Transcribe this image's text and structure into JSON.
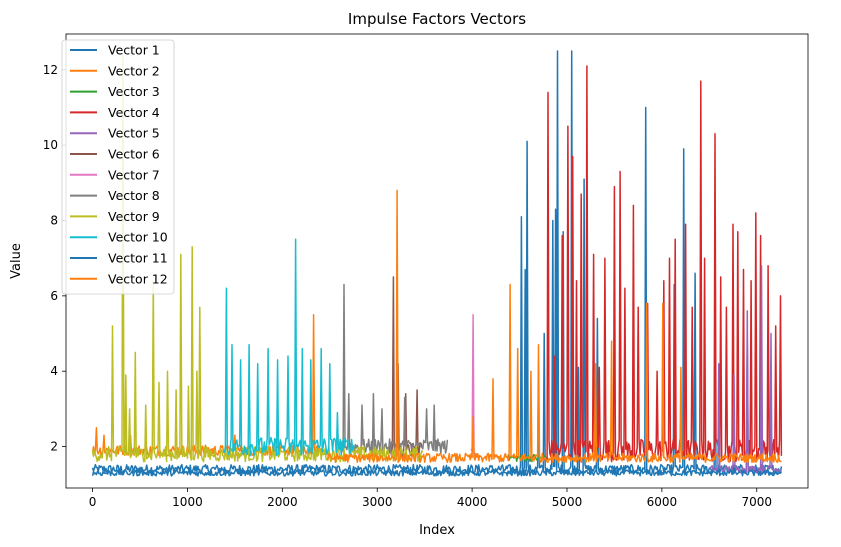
{
  "chart_data": {
    "type": "line",
    "title": "Impulse Factors Vectors",
    "xlabel": "Index",
    "ylabel": "Value",
    "xlim": [
      -280,
      7540
    ],
    "ylim": [
      0.9,
      12.95
    ],
    "xticks": [
      0,
      1000,
      2000,
      3000,
      4000,
      5000,
      6000,
      7000
    ],
    "yticks": [
      2,
      4,
      6,
      8,
      10,
      12
    ],
    "grid": false,
    "legend_position": "upper-left",
    "series": [
      {
        "name": "Vector 1",
        "color": "#1f77b4",
        "range": [
          0,
          7260
        ],
        "base": 1.4,
        "jitter": 0.12,
        "spikes": [
          [
            4520,
            8.1
          ],
          [
            4560,
            6.7
          ],
          [
            4580,
            10.1
          ],
          [
            4700,
            3.7
          ],
          [
            4760,
            5.0
          ],
          [
            4850,
            8.0
          ],
          [
            4880,
            8.3
          ],
          [
            4900,
            12.5
          ],
          [
            4960,
            7.7
          ],
          [
            5050,
            12.5
          ],
          [
            5120,
            4.1
          ],
          [
            5180,
            9.1
          ],
          [
            5320,
            5.4
          ],
          [
            5830,
            11.0
          ],
          [
            6130,
            6.3
          ],
          [
            6230,
            9.9
          ],
          [
            6350,
            6.6
          ],
          [
            6560,
            5.3
          ],
          [
            6900,
            4.8
          ]
        ]
      },
      {
        "name": "Vector 2",
        "color": "#ff7f0e",
        "range": [
          0,
          2470
        ],
        "base": 1.9,
        "jitter": 0.14,
        "spikes": [
          [
            40,
            2.5
          ],
          [
            120,
            2.3
          ],
          [
            400,
            2.3
          ],
          [
            1500,
            2.3
          ],
          [
            2330,
            5.5
          ]
        ]
      },
      {
        "name": "Vector 3",
        "color": "#2ca02c",
        "range": [
          4380,
          4790
        ],
        "base": 1.7,
        "jitter": 0.1,
        "spikes": []
      },
      {
        "name": "Vector 4",
        "color": "#d62728",
        "range": [
          4790,
          7260
        ],
        "base": 1.9,
        "jitter": 0.3,
        "spikes": [
          [
            4800,
            11.4
          ],
          [
            4870,
            4.4
          ],
          [
            4950,
            7.6
          ],
          [
            5010,
            10.5
          ],
          [
            5060,
            9.7
          ],
          [
            5100,
            6.4
          ],
          [
            5150,
            8.7
          ],
          [
            5210,
            12.1
          ],
          [
            5280,
            7.1
          ],
          [
            5340,
            4.1
          ],
          [
            5400,
            7.0
          ],
          [
            5500,
            8.9
          ],
          [
            5560,
            9.3
          ],
          [
            5610,
            6.2
          ],
          [
            5700,
            8.4
          ],
          [
            5750,
            5.7
          ],
          [
            5850,
            5.8
          ],
          [
            5950,
            4.0
          ],
          [
            6020,
            6.4
          ],
          [
            6080,
            7.0
          ],
          [
            6140,
            7.5
          ],
          [
            6250,
            7.9
          ],
          [
            6320,
            5.7
          ],
          [
            6410,
            11.7
          ],
          [
            6450,
            7.0
          ],
          [
            6560,
            10.3
          ],
          [
            6620,
            6.5
          ],
          [
            6680,
            5.7
          ],
          [
            6750,
            7.9
          ],
          [
            6800,
            7.7
          ],
          [
            6860,
            6.7
          ],
          [
            6940,
            6.4
          ],
          [
            6990,
            8.2
          ],
          [
            7040,
            7.6
          ],
          [
            7120,
            6.8
          ],
          [
            7200,
            5.2
          ],
          [
            7250,
            6.0
          ]
        ]
      },
      {
        "name": "Vector 5",
        "color": "#9467bd",
        "range": [
          6500,
          7260
        ],
        "base": 1.4,
        "jitter": 0.1,
        "spikes": [
          [
            6600,
            4.2
          ],
          [
            6760,
            3.9
          ],
          [
            6900,
            5.6
          ],
          [
            7050,
            6.8
          ],
          [
            7150,
            5.0
          ]
        ]
      },
      {
        "name": "Vector 6",
        "color": "#8c564b",
        "range": [
          3100,
          3470
        ],
        "base": 1.9,
        "jitter": 0.2,
        "spikes": [
          [
            3170,
            6.5
          ],
          [
            3220,
            4.2
          ],
          [
            3300,
            3.4
          ],
          [
            3420,
            3.5
          ]
        ]
      },
      {
        "name": "Vector 7",
        "color": "#e377c2",
        "range": [
          3990,
          4030
        ],
        "base": 1.8,
        "jitter": 0.15,
        "spikes": [
          [
            4010,
            5.5
          ]
        ]
      },
      {
        "name": "Vector 8",
        "color": "#7f7f7f",
        "range": [
          2600,
          3740
        ],
        "base": 2.0,
        "jitter": 0.2,
        "spikes": [
          [
            2650,
            6.3
          ],
          [
            2700,
            3.4
          ],
          [
            2840,
            3.1
          ],
          [
            2960,
            3.4
          ],
          [
            3050,
            3.0
          ],
          [
            3290,
            3.3
          ],
          [
            3520,
            3.0
          ],
          [
            3600,
            3.1
          ]
        ]
      },
      {
        "name": "Vector 9",
        "color": "#bcbd22",
        "range": [
          0,
          3480
        ],
        "base": 1.8,
        "jitter": 0.2,
        "spikes": [
          [
            210,
            5.2
          ],
          [
            320,
            12.4
          ],
          [
            350,
            3.9
          ],
          [
            390,
            3.0
          ],
          [
            450,
            4.5
          ],
          [
            560,
            3.1
          ],
          [
            640,
            6.4
          ],
          [
            700,
            3.7
          ],
          [
            790,
            4.0
          ],
          [
            880,
            3.5
          ],
          [
            930,
            7.1
          ],
          [
            1010,
            3.6
          ],
          [
            1050,
            7.3
          ],
          [
            1100,
            4.0
          ],
          [
            1130,
            5.7
          ]
        ]
      },
      {
        "name": "Vector 10",
        "color": "#17becf",
        "range": [
          1390,
          2760
        ],
        "base": 2.0,
        "jitter": 0.25,
        "spikes": [
          [
            1410,
            6.2
          ],
          [
            1470,
            4.7
          ],
          [
            1560,
            4.3
          ],
          [
            1650,
            4.7
          ],
          [
            1740,
            4.2
          ],
          [
            1850,
            4.6
          ],
          [
            1950,
            4.3
          ],
          [
            2060,
            4.4
          ],
          [
            2140,
            7.5
          ],
          [
            2210,
            4.6
          ],
          [
            2300,
            4.3
          ],
          [
            2410,
            4.6
          ],
          [
            2500,
            4.2
          ],
          [
            2580,
            2.9
          ]
        ]
      },
      {
        "name": "Vector 11",
        "color": "#1f77b4",
        "range": [
          0,
          7260
        ],
        "base": 1.3,
        "jitter": 0.08,
        "spikes": []
      },
      {
        "name": "Vector 12",
        "color": "#ff7f0e",
        "range": [
          2470,
          7260
        ],
        "base": 1.7,
        "jitter": 0.12,
        "spikes": [
          [
            3210,
            8.8
          ],
          [
            4010,
            2.8
          ],
          [
            4220,
            3.8
          ],
          [
            4400,
            6.3
          ],
          [
            4480,
            4.6
          ],
          [
            4620,
            4.0
          ],
          [
            4700,
            4.7
          ],
          [
            5300,
            4.2
          ],
          [
            5470,
            4.8
          ],
          [
            5840,
            5.8
          ],
          [
            6010,
            5.8
          ],
          [
            6200,
            4.1
          ]
        ]
      }
    ]
  }
}
